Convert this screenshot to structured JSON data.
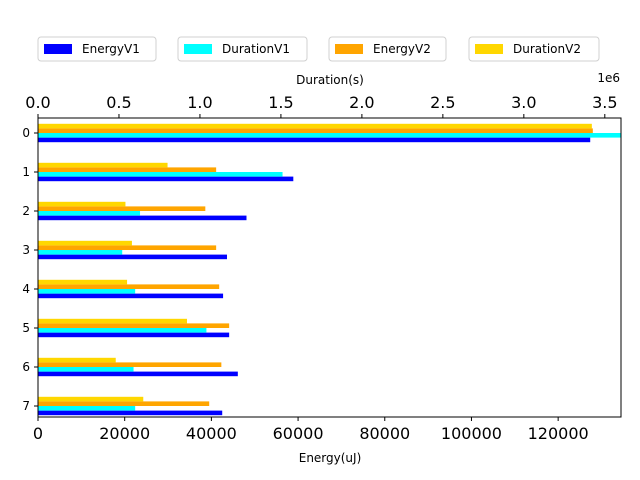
{
  "chart_data": {
    "type": "bar",
    "orientation": "horizontal",
    "categories": [
      "0",
      "1",
      "2",
      "3",
      "4",
      "5",
      "6",
      "7"
    ],
    "legend": {
      "placement": "top-outside",
      "entries": [
        {
          "name": "EnergyV1",
          "color": "#0000ff"
        },
        {
          "name": "DurationV1",
          "color": "#00ffff"
        },
        {
          "name": "EnergyV2",
          "color": "#ffa500"
        },
        {
          "name": "DurationV2",
          "color": "#ffd700"
        }
      ]
    },
    "axes": {
      "bottom": {
        "label": "Energy(uJ)",
        "range": [
          0,
          134500
        ],
        "ticks": [
          0,
          20000,
          40000,
          60000,
          80000,
          100000,
          120000
        ],
        "tick_labels": [
          "0",
          "20000",
          "40000",
          "60000",
          "80000",
          "100000",
          "120000"
        ]
      },
      "top": {
        "label": "Duration(s)",
        "offset_label": "1e6",
        "range": [
          0,
          3.6
        ],
        "ticks": [
          0,
          0.5,
          1.0,
          1.5,
          2.0,
          2.5,
          3.0,
          3.5
        ],
        "tick_labels": [
          "0.0",
          "0.5",
          "1.0",
          "1.5",
          "2.0",
          "2.5",
          "3.0",
          "3.5"
        ]
      },
      "left": {
        "tick_labels": [
          "0",
          "1",
          "2",
          "3",
          "4",
          "5",
          "6",
          "7"
        ]
      }
    },
    "series": [
      {
        "name": "EnergyV1",
        "axis": "bottom",
        "color": "#0000ff",
        "values": [
          127400,
          58900,
          48100,
          43600,
          42700,
          44100,
          46100,
          42500
        ]
      },
      {
        "name": "DurationV1",
        "axis": "top",
        "color": "#00ffff",
        "values": [
          3.6,
          1.51,
          0.63,
          0.52,
          0.6,
          1.04,
          0.59,
          0.6
        ]
      },
      {
        "name": "EnergyV2",
        "axis": "bottom",
        "color": "#ffa500",
        "values": [
          128000,
          41100,
          38600,
          41100,
          41800,
          44100,
          42300,
          39500
        ]
      },
      {
        "name": "DurationV2",
        "axis": "top",
        "color": "#ffd700",
        "values": [
          3.42,
          0.8,
          0.54,
          0.58,
          0.55,
          0.92,
          0.48,
          0.65
        ]
      }
    ]
  }
}
